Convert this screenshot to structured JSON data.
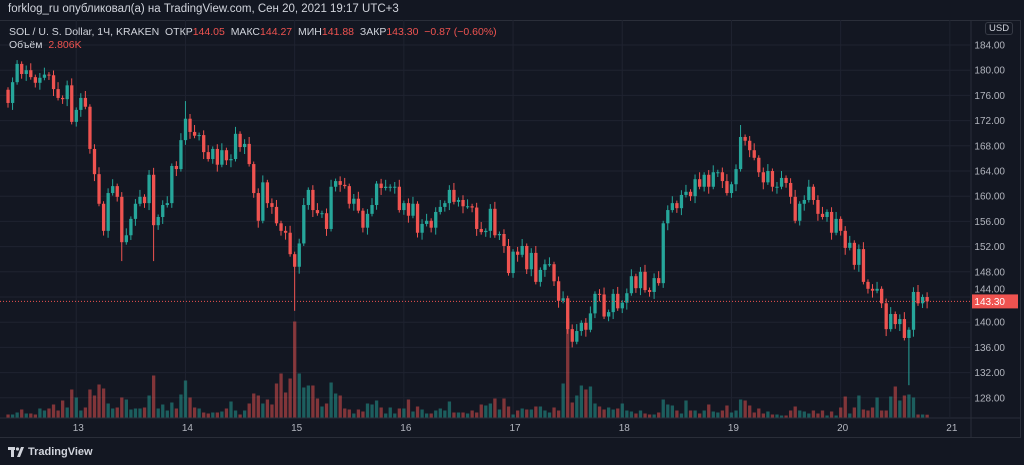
{
  "header": {
    "published": "forklog_ru опубликовал(а) на TradingView.com, Сен 20, 2021 19:17 UTC+3"
  },
  "legend": {
    "symbol": "SOL / U. S. Dollar, 1Ч, KRAKEN",
    "open_label": "ОТКР",
    "open": "144.05",
    "high_label": "МАКС",
    "high": "144.27",
    "low_label": "МИН",
    "low": "141.88",
    "close_label": "ЗАКР",
    "close": "143.30",
    "change": "−0.87 (−0.60%)",
    "volume_label": "Объём",
    "volume": "2.806K"
  },
  "currency": "USD",
  "last_price_label": "143.30",
  "footer": {
    "brand": "TradingView"
  },
  "colors": {
    "background": "#131722",
    "up": "#26a69a",
    "down": "#ef5350",
    "grid": "#1f2330",
    "text": "#b2b5be"
  },
  "chart_data": {
    "type": "candlestick",
    "interval": "1h",
    "first_open": 176.9,
    "last_price": 143.3,
    "ylim": [
      125,
      186
    ],
    "grid": true,
    "y_ticks": [
      "184.00",
      "180.00",
      "176.00",
      "172.00",
      "168.00",
      "164.00",
      "160.00",
      "156.00",
      "152.00",
      "148.00",
      "144.00",
      "140.00",
      "136.00",
      "132.00",
      "128.00"
    ],
    "x_ticks": [
      "13",
      "14",
      "15",
      "16",
      "17",
      "18",
      "19",
      "20",
      "21"
    ],
    "close": [
      174.8,
      178.1,
      181.0,
      179.4,
      180.0,
      178.9,
      178.0,
      178.8,
      179.3,
      179.2,
      177.0,
      175.6,
      175.4,
      177.6,
      171.8,
      173.7,
      175.6,
      174.2,
      167.5,
      163.5,
      158.8,
      154.5,
      160.5,
      161.6,
      159.9,
      152.7,
      153.8,
      156.4,
      158.8,
      159.9,
      158.9,
      163.4,
      155.4,
      156.7,
      158.6,
      158.9,
      164.8,
      164.3,
      168.9,
      172.3,
      170.2,
      169.6,
      169.7,
      167.0,
      165.9,
      167.5,
      165.0,
      167.3,
      165.7,
      165.9,
      169.9,
      167.8,
      168.3,
      165.1,
      160.5,
      156.1,
      162.2,
      158.9,
      158.3,
      155.7,
      154.5,
      154.2,
      150.8,
      148.8,
      152.5,
      158.6,
      161.0,
      157.8,
      157.3,
      157.3,
      154.8,
      161.5,
      162.4,
      161.8,
      161.6,
      158.8,
      159.6,
      157.7,
      155.0,
      157.2,
      158.6,
      162.0,
      161.3,
      161.5,
      161.5,
      161.5,
      157.8,
      158.9,
      156.9,
      158.8,
      154.2,
      155.6,
      156.1,
      155.0,
      157.5,
      158.3,
      158.9,
      161.0,
      159.1,
      159.4,
      158.4,
      158.4,
      158.2,
      154.8,
      154.3,
      154.5,
      158.0,
      153.8,
      154.0,
      152.1,
      147.8,
      151.2,
      150.7,
      152.1,
      148.4,
      151.0,
      146.4,
      148.3,
      149.2,
      149.2,
      146.5,
      143.4,
      143.8,
      138.9,
      136.9,
      138.6,
      139.9,
      138.8,
      141.4,
      144.5,
      144.4,
      140.9,
      141.6,
      144.5,
      142.2,
      143.1,
      144.6,
      147.3,
      145.4,
      148.0,
      145.1,
      144.8,
      147.0,
      146.2,
      155.7,
      157.8,
      158.9,
      158.1,
      160.2,
      160.7,
      160.0,
      162.7,
      161.5,
      163.4,
      161.5,
      163.8,
      163.8,
      162.4,
      160.5,
      161.9,
      164.3,
      169.4,
      168.8,
      167.3,
      166.1,
      163.8,
      162.2,
      164.0,
      161.5,
      161.5,
      162.9,
      162.1,
      159.9,
      156.1,
      158.8,
      159.4,
      161.5,
      159.4,
      157.2,
      156.7,
      157.5,
      154.2,
      156.4,
      154.5,
      151.8,
      152.6,
      149.1,
      151.6,
      146.4,
      145.3,
      145.0,
      145.3,
      143.0,
      138.9,
      141.3,
      139.7,
      140.5,
      137.5,
      138.8,
      144.8,
      143.0,
      144.0,
      143.3
    ],
    "high_overrides": {
      "2": 181.6,
      "39": 175.1,
      "161": 171.3
    },
    "low_overrides": {
      "25": 149.7,
      "32": 149.7,
      "63": 141.8,
      "124": 136.0,
      "198": 130.0
    },
    "volume_k": [
      3,
      3,
      5,
      8,
      4,
      4,
      3,
      9,
      7,
      9,
      13,
      7,
      17,
      10,
      28,
      20,
      7,
      10,
      28,
      22,
      33,
      29,
      14,
      9,
      10,
      20,
      18,
      8,
      9,
      9,
      10,
      22,
      42,
      9,
      13,
      7,
      15,
      9,
      23,
      37,
      20,
      10,
      9,
      5,
      4,
      5,
      5,
      6,
      9,
      16,
      7,
      3,
      7,
      14,
      24,
      22,
      14,
      18,
      13,
      34,
      44,
      25,
      39,
      96,
      44,
      30,
      32,
      32,
      19,
      11,
      14,
      35,
      24,
      22,
      9,
      8,
      4,
      8,
      6,
      14,
      13,
      17,
      10,
      4,
      10,
      4,
      9,
      9,
      18,
      6,
      11,
      8,
      4,
      4,
      7,
      9,
      7,
      16,
      5,
      5,
      5,
      4,
      7,
      5,
      13,
      12,
      14,
      19,
      8,
      19,
      11,
      3,
      7,
      9,
      8,
      8,
      11,
      11,
      7,
      5,
      10,
      7,
      34,
      99,
      15,
      22,
      32,
      28,
      31,
      14,
      11,
      8,
      10,
      8,
      9,
      14,
      7,
      6,
      4,
      7,
      4,
      3,
      3,
      5,
      18,
      13,
      12,
      7,
      4,
      17,
      7,
      7,
      4,
      7,
      13,
      6,
      5,
      7,
      12,
      5,
      7,
      18,
      17,
      12,
      5,
      9,
      4,
      6,
      3,
      3,
      2,
      2,
      7,
      11,
      7,
      6,
      4,
      7,
      4,
      7,
      2,
      6,
      2,
      10,
      21,
      4,
      10,
      22,
      8,
      7,
      10,
      20,
      7,
      7,
      21,
      31,
      17,
      22,
      23,
      20,
      3,
      3,
      2.806
    ]
  }
}
